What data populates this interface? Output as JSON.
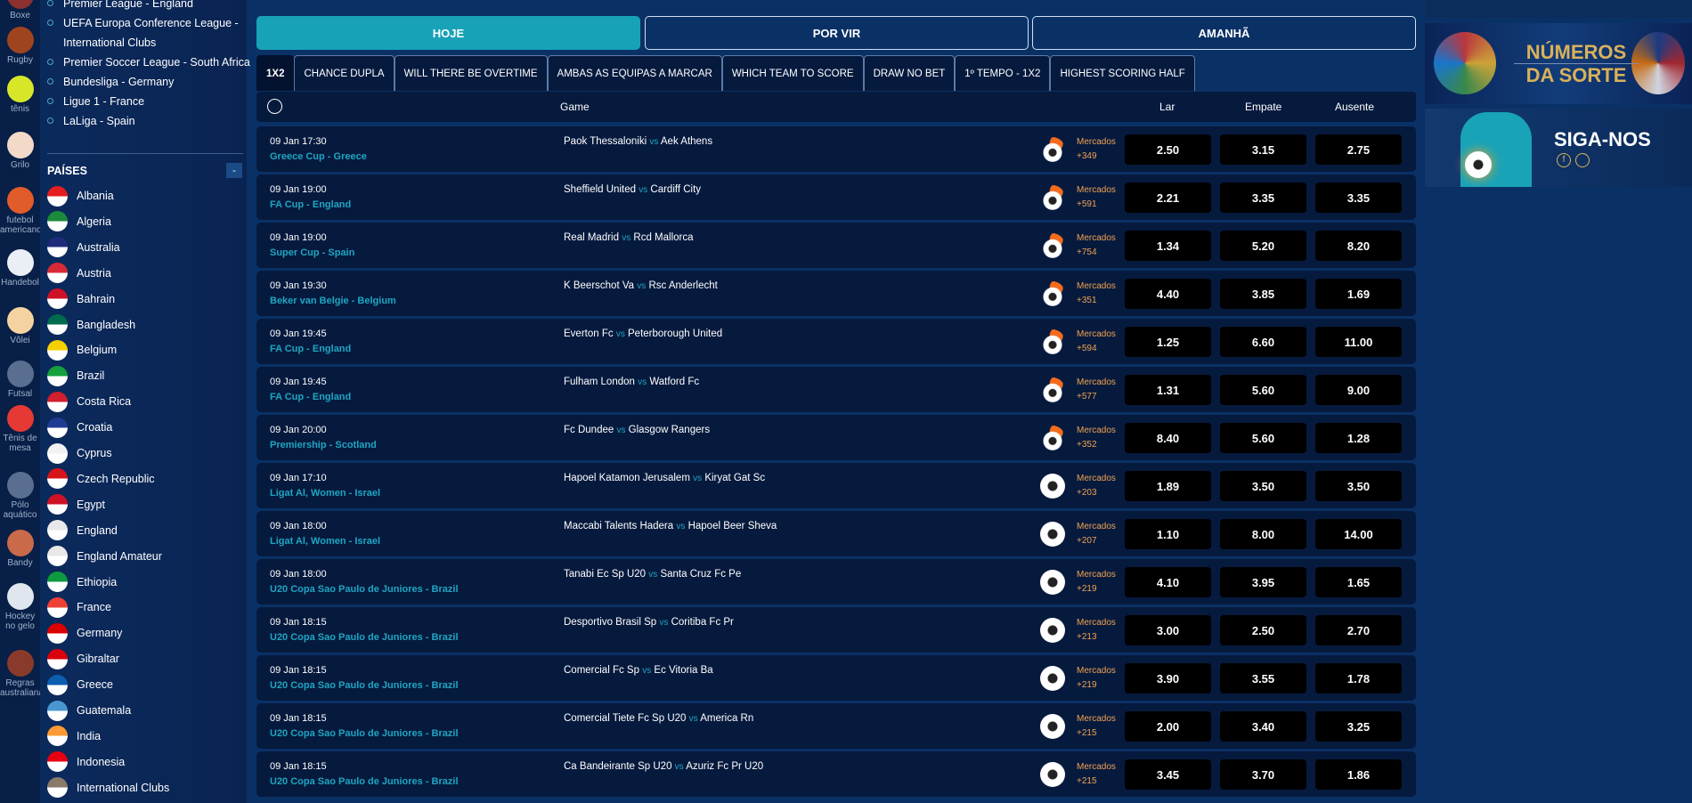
{
  "sports": [
    {
      "label": "Boxe",
      "color": "#8b2f2f"
    },
    {
      "label": "Rugby",
      "color": "#a0441f"
    },
    {
      "label": "tênis",
      "color": "#d8e62a"
    },
    {
      "label": "Grilo",
      "color": "#f2d9c8"
    },
    {
      "label": "futebol americano",
      "color": "#e25b2a"
    },
    {
      "label": "Handebol",
      "color": "#eaeef5"
    },
    {
      "label": "Vôlei",
      "color": "#f5d3a0"
    },
    {
      "label": "Futsal",
      "color": "#5a6f90"
    },
    {
      "label": "Tênis de mesa",
      "color": "#e53935"
    },
    {
      "label": "Pólo aquático",
      "color": "#5a6f90"
    },
    {
      "label": "Bandy",
      "color": "#c96a4a"
    },
    {
      "label": "Hockey no gelo",
      "color": "#dfe6ee"
    },
    {
      "label": "Regras australianas",
      "color": "#8a3a2a"
    }
  ],
  "leagues": [
    "Premier League - England",
    "UEFA Europa Conference League - International Clubs",
    "Premier Soccer League - South Africa",
    "Bundesliga - Germany",
    "Ligue 1 - France",
    "LaLiga - Spain"
  ],
  "countries_title": "PAÍSES",
  "collapse_label": "-",
  "countries": [
    [
      "Albania",
      "#e41e20"
    ],
    [
      "Algeria",
      "#1b8a3a"
    ],
    [
      "Australia",
      "#1f2b7a"
    ],
    [
      "Austria",
      "#d62b37"
    ],
    [
      "Bahrain",
      "#ce1126"
    ],
    [
      "Bangladesh",
      "#006a4e"
    ],
    [
      "Belgium",
      "#f5d000"
    ],
    [
      "Brazil",
      "#14a03c"
    ],
    [
      "Costa Rica",
      "#d21e2e"
    ],
    [
      "Croatia",
      "#1f3c95"
    ],
    [
      "Cyprus",
      "#f2f2f2"
    ],
    [
      "Czech Republic",
      "#d7141a"
    ],
    [
      "Egypt",
      "#ce1126"
    ],
    [
      "England",
      "#e8e8e8"
    ],
    [
      "England Amateur",
      "#e8e8e8"
    ],
    [
      "Ethiopia",
      "#0e9a3e"
    ],
    [
      "France",
      "#ef4135"
    ],
    [
      "Germany",
      "#dd0000"
    ],
    [
      "Gibraltar",
      "#da000c"
    ],
    [
      "Greece",
      "#0d5eaf"
    ],
    [
      "Guatemala",
      "#4997d0"
    ],
    [
      "India",
      "#ff9933"
    ],
    [
      "Indonesia",
      "#e70011"
    ],
    [
      "International Clubs",
      "#8a7a6a"
    ]
  ],
  "day_tabs": [
    "HOJE",
    "POR VIR",
    "AMANHÃ"
  ],
  "market_tabs": [
    "1X2",
    "CHANCE DUPLA",
    "WILL THERE BE OVERTIME",
    "AMBAS AS EQUIPAS A MARCAR",
    "WHICH TEAM TO SCORE",
    "DRAW NO BET",
    "1º TEMPO - 1X2",
    "HIGHEST SCORING HALF"
  ],
  "header": {
    "game": "Game",
    "home": "Lar",
    "draw": "Empate",
    "away": "Ausente"
  },
  "vs": "vs",
  "markets_label": "Mercados",
  "matches": [
    {
      "date": "09 Jan 17:30",
      "league": "Greece Cup - Greece",
      "home": "Paok Thessaloniki",
      "away": "Aek Athens",
      "markets": "+349",
      "odds": [
        "2.50",
        "3.15",
        "2.75"
      ],
      "hot": true
    },
    {
      "date": "09 Jan 19:00",
      "league": "FA Cup - England",
      "home": "Sheffield United",
      "away": "Cardiff City",
      "markets": "+591",
      "odds": [
        "2.21",
        "3.35",
        "3.35"
      ],
      "hot": true
    },
    {
      "date": "09 Jan 19:00",
      "league": "Super Cup - Spain",
      "home": "Real Madrid",
      "away": "Rcd Mallorca",
      "markets": "+754",
      "odds": [
        "1.34",
        "5.20",
        "8.20"
      ],
      "hot": true
    },
    {
      "date": "09 Jan 19:30",
      "league": "Beker van Belgie - Belgium",
      "home": "K Beerschot Va",
      "away": "Rsc Anderlecht",
      "markets": "+351",
      "odds": [
        "4.40",
        "3.85",
        "1.69"
      ],
      "hot": true
    },
    {
      "date": "09 Jan 19:45",
      "league": "FA Cup - England",
      "home": "Everton Fc",
      "away": "Peterborough United",
      "markets": "+594",
      "odds": [
        "1.25",
        "6.60",
        "11.00"
      ],
      "hot": true
    },
    {
      "date": "09 Jan 19:45",
      "league": "FA Cup - England",
      "home": "Fulham London",
      "away": "Watford Fc",
      "markets": "+577",
      "odds": [
        "1.31",
        "5.60",
        "9.00"
      ],
      "hot": true
    },
    {
      "date": "09 Jan 20:00",
      "league": "Premiership - Scotland",
      "home": "Fc Dundee",
      "away": "Glasgow Rangers",
      "markets": "+352",
      "odds": [
        "8.40",
        "5.60",
        "1.28"
      ],
      "hot": true
    },
    {
      "date": "09 Jan 17:10",
      "league": "Ligat Al, Women - Israel",
      "home": "Hapoel Katamon Jerusalem",
      "away": "Kiryat Gat Sc",
      "markets": "+203",
      "odds": [
        "1.89",
        "3.50",
        "3.50"
      ],
      "hot": false
    },
    {
      "date": "09 Jan 18:00",
      "league": "Ligat Al, Women - Israel",
      "home": "Maccabi Talents Hadera",
      "away": "Hapoel Beer Sheva",
      "markets": "+207",
      "odds": [
        "1.10",
        "8.00",
        "14.00"
      ],
      "hot": false
    },
    {
      "date": "09 Jan 18:00",
      "league": "U20 Copa Sao Paulo de Juniores - Brazil",
      "home": "Tanabi Ec Sp U20",
      "away": "Santa Cruz Fc Pe",
      "markets": "+219",
      "odds": [
        "4.10",
        "3.95",
        "1.65"
      ],
      "hot": false
    },
    {
      "date": "09 Jan 18:15",
      "league": "U20 Copa Sao Paulo de Juniores - Brazil",
      "home": "Desportivo Brasil Sp",
      "away": "Coritiba Fc Pr",
      "markets": "+213",
      "odds": [
        "3.00",
        "2.50",
        "2.70"
      ],
      "hot": false
    },
    {
      "date": "09 Jan 18:15",
      "league": "U20 Copa Sao Paulo de Juniores - Brazil",
      "home": "Comercial Fc Sp",
      "away": "Ec Vitoria Ba",
      "markets": "+219",
      "odds": [
        "3.90",
        "3.55",
        "1.78"
      ],
      "hot": false
    },
    {
      "date": "09 Jan 18:15",
      "league": "U20 Copa Sao Paulo de Juniores - Brazil",
      "home": "Comercial Tiete Fc Sp U20",
      "away": "America Rn",
      "markets": "+215",
      "odds": [
        "2.00",
        "3.40",
        "3.25"
      ],
      "hot": false
    },
    {
      "date": "09 Jan 18:15",
      "league": "U20 Copa Sao Paulo de Juniores - Brazil",
      "home": "Ca Bandeirante Sp U20",
      "away": "Azuriz Fc Pr U20",
      "markets": "+215",
      "odds": [
        "3.45",
        "3.70",
        "1.86"
      ],
      "hot": false
    }
  ],
  "banners": {
    "lucky_line1": "NÚMEROS",
    "lucky_line2": "DA SORTE",
    "follow": "SIGA-NOS"
  },
  "colors": {
    "accent": "#17a2b8",
    "league": "#1fa5c1",
    "markets": "#f0a250",
    "row": "#061a3e"
  }
}
